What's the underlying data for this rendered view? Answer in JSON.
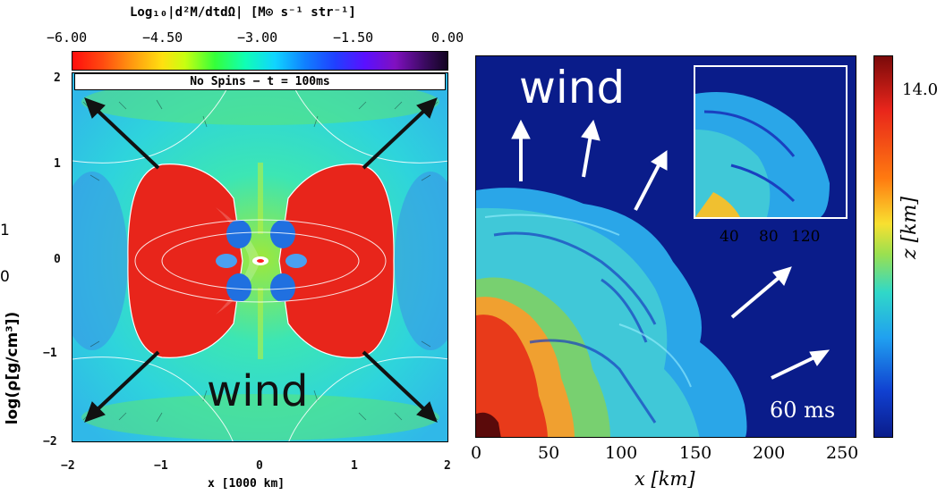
{
  "chart_data": [
    {
      "type": "heatmap",
      "panel": "left",
      "colorbar_label": "Log₁₀|d²M/dtdΩ| [M⊙ s⁻¹ str⁻¹]",
      "colorbar_ticks": [
        "−6.00",
        "−4.50",
        "−3.00",
        "−1.50",
        "0.00"
      ],
      "colorbar_range": [
        -6.0,
        0.0
      ],
      "title": "No Spins − t = 100ms",
      "xlabel": "x [1000 km]",
      "x_ticks": [
        "−2",
        "−1",
        "0",
        "1",
        "2"
      ],
      "xlim": [
        -2,
        2
      ],
      "y_ticks": [
        "2",
        "1",
        "0",
        "−1",
        "−2"
      ],
      "ylim": [
        -2,
        2
      ],
      "annotation": "wind",
      "clipped_label": "log(ρ[g/cm³])",
      "clipped_ticks": [
        "1",
        "0"
      ]
    },
    {
      "type": "heatmap",
      "panel": "right",
      "xlabel": "x [km]",
      "x_ticks": [
        "0",
        "50",
        "100",
        "150",
        "200",
        "250"
      ],
      "xlim": [
        0,
        260
      ],
      "annotation": "wind",
      "time_label": "60 ms",
      "inset_x_ticks": [
        "40",
        "80",
        "120"
      ],
      "colorbar_label": "z [km]",
      "colorbar_top_tick": "14.0"
    }
  ],
  "colors": {
    "high": "#e8251b",
    "mid": "#3ce0c0",
    "low": "#0a1c8a",
    "arrow": "#111111"
  }
}
